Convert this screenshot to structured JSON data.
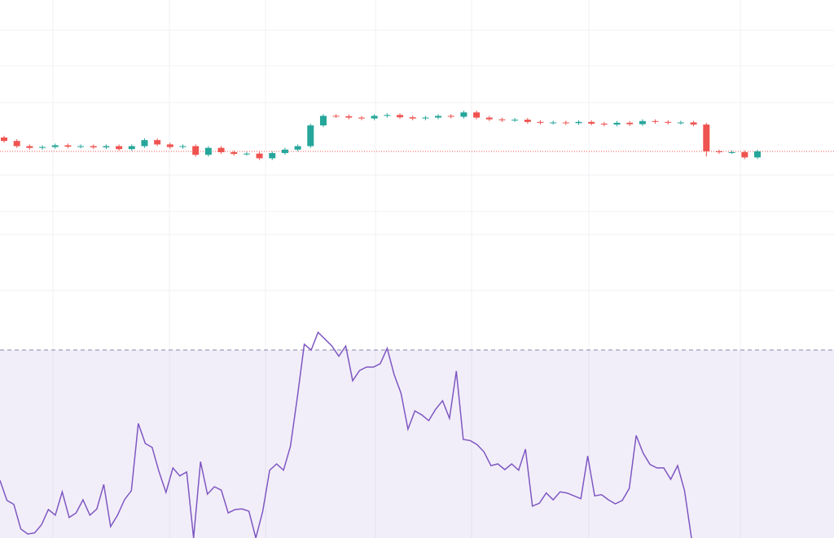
{
  "chart_data": [
    {
      "type": "candlestick",
      "ylim": [
        90,
        110
      ],
      "up_color": "#26a69a",
      "down_color": "#ef5350",
      "last_price_color": "#ef5350",
      "ohlc": [
        [
          102.05,
          102.15,
          101.75,
          101.85
        ],
        [
          101.85,
          101.95,
          101.45,
          101.55
        ],
        [
          101.55,
          101.65,
          101.35,
          101.45
        ],
        [
          101.45,
          101.6,
          101.35,
          101.5
        ],
        [
          101.5,
          101.7,
          101.4,
          101.6
        ],
        [
          101.6,
          101.7,
          101.42,
          101.52
        ],
        [
          101.52,
          101.65,
          101.42,
          101.55
        ],
        [
          101.55,
          101.65,
          101.38,
          101.48
        ],
        [
          101.48,
          101.65,
          101.38,
          101.55
        ],
        [
          101.55,
          101.65,
          101.28,
          101.38
        ],
        [
          101.38,
          101.65,
          101.28,
          101.55
        ],
        [
          101.55,
          102.0,
          101.45,
          101.9
        ],
        [
          101.9,
          102.0,
          101.55,
          101.65
        ],
        [
          101.65,
          101.75,
          101.4,
          101.5
        ],
        [
          101.5,
          101.65,
          101.4,
          101.55
        ],
        [
          101.55,
          101.65,
          100.95,
          101.05
        ],
        [
          101.05,
          101.55,
          100.95,
          101.45
        ],
        [
          101.45,
          101.55,
          101.1,
          101.2
        ],
        [
          101.2,
          101.3,
          101.0,
          101.1
        ],
        [
          101.1,
          101.22,
          101.0,
          101.12
        ],
        [
          101.12,
          101.22,
          100.75,
          100.85
        ],
        [
          100.85,
          101.25,
          100.75,
          101.15
        ],
        [
          101.15,
          101.45,
          101.05,
          101.35
        ],
        [
          101.35,
          101.65,
          101.25,
          101.55
        ],
        [
          101.55,
          102.85,
          101.45,
          102.75
        ],
        [
          102.75,
          103.4,
          102.65,
          103.3
        ],
        [
          103.3,
          103.4,
          103.18,
          103.28
        ],
        [
          103.28,
          103.38,
          103.1,
          103.2
        ],
        [
          103.2,
          103.3,
          103.05,
          103.15
        ],
        [
          103.15,
          103.4,
          103.05,
          103.3
        ],
        [
          103.3,
          103.45,
          103.2,
          103.35
        ],
        [
          103.35,
          103.45,
          103.12,
          103.22
        ],
        [
          103.22,
          103.32,
          103.05,
          103.15
        ],
        [
          103.15,
          103.3,
          103.05,
          103.2
        ],
        [
          103.2,
          103.4,
          103.1,
          103.3
        ],
        [
          103.3,
          103.4,
          103.15,
          103.25
        ],
        [
          103.25,
          103.6,
          103.15,
          103.5
        ],
        [
          103.5,
          103.6,
          103.1,
          103.2
        ],
        [
          103.2,
          103.3,
          103.0,
          103.1
        ],
        [
          103.1,
          103.2,
          102.95,
          103.05
        ],
        [
          103.05,
          103.18,
          102.95,
          103.08
        ],
        [
          103.08,
          103.18,
          102.85,
          102.95
        ],
        [
          102.95,
          103.05,
          102.8,
          102.9
        ],
        [
          102.9,
          103.02,
          102.8,
          102.92
        ],
        [
          102.92,
          103.02,
          102.78,
          102.88
        ],
        [
          102.88,
          103.05,
          102.78,
          102.95
        ],
        [
          102.95,
          103.05,
          102.75,
          102.85
        ],
        [
          102.85,
          102.95,
          102.7,
          102.8
        ],
        [
          102.8,
          103.0,
          102.7,
          102.9
        ],
        [
          102.9,
          103.0,
          102.72,
          102.82
        ],
        [
          102.82,
          103.1,
          102.72,
          103.0
        ],
        [
          103.0,
          103.1,
          102.85,
          102.95
        ],
        [
          102.95,
          103.05,
          102.8,
          102.9
        ],
        [
          102.9,
          103.02,
          102.8,
          102.92
        ],
        [
          102.92,
          103.02,
          102.7,
          102.8
        ],
        [
          102.8,
          102.9,
          100.95,
          101.25
        ],
        [
          101.25,
          101.35,
          101.1,
          101.2
        ],
        [
          101.2,
          101.3,
          101.1,
          101.2
        ],
        [
          101.2,
          101.3,
          100.8,
          100.9
        ],
        [
          100.9,
          101.35,
          100.8,
          101.25
        ]
      ]
    },
    {
      "type": "line",
      "ylim": [
        37,
        75
      ],
      "color": "#7e57c2",
      "upper_band": 70,
      "values": [
        47.1,
        43.6,
        42.9,
        38.6,
        37.7,
        37.9,
        39.3,
        42.0,
        41.0,
        45.1,
        40.6,
        41.4,
        43.7,
        41.0,
        42.1,
        46.4,
        39.0,
        41.0,
        43.7,
        45.3,
        57.1,
        53.6,
        52.9,
        48.6,
        45.0,
        49.3,
        47.9,
        48.6,
        37.0,
        50.4,
        44.7,
        46.0,
        45.4,
        41.4,
        42.0,
        42.1,
        41.7,
        37.0,
        41.7,
        48.9,
        50.0,
        48.9,
        53.1,
        61.7,
        71.0,
        70.0,
        73.1,
        71.9,
        70.7,
        68.9,
        70.7,
        64.6,
        66.4,
        67.0,
        67.0,
        67.6,
        70.3,
        65.7,
        62.4,
        56.1,
        59.3,
        58.6,
        57.6,
        59.6,
        61.1,
        58.0,
        66.3,
        54.3,
        54.1,
        53.4,
        52.1,
        49.7,
        50.0,
        49.0,
        50.0,
        48.9,
        52.6,
        42.6,
        43.1,
        44.9,
        43.7,
        45.1,
        44.9,
        44.4,
        43.9,
        51.4,
        44.4,
        44.6,
        43.7,
        43.0,
        43.6,
        45.7,
        55.0,
        51.9,
        49.9,
        49.3,
        49.3,
        47.3,
        49.7,
        45.3,
        37.0
      ]
    }
  ]
}
